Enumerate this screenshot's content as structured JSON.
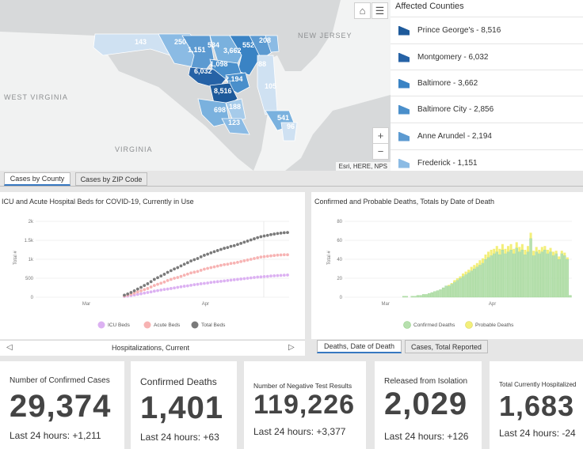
{
  "map": {
    "labels": {
      "nj": "NEW JERSEY",
      "wv": "WEST VIRGINIA",
      "va": "VIRGINIA"
    },
    "county_values": [
      "143",
      "250",
      "1,151",
      "534",
      "3,662",
      "552",
      "208",
      "1,098",
      "6,032",
      "2,194",
      "8,516",
      "698",
      "188",
      "123",
      "541",
      "96",
      "88",
      "105"
    ],
    "attribution": "Esri, HERE, NPS",
    "zoom_in": "+",
    "zoom_out": "−"
  },
  "legend": {
    "title": "Affected Counties",
    "items": [
      {
        "label": "Prince George's - 8,516",
        "color": "#1e5a9b"
      },
      {
        "label": "Montgomery - 6,032",
        "color": "#2662a6"
      },
      {
        "label": "Baltimore - 3,662",
        "color": "#3a83c4"
      },
      {
        "label": "Baltimore City - 2,856",
        "color": "#4a8fcb"
      },
      {
        "label": "Anne Arundel - 2,194",
        "color": "#5c9ad1"
      },
      {
        "label": "Frederick - 1,151",
        "color": "#8bbbe4"
      }
    ]
  },
  "map_tabs": {
    "county": "Cases by County",
    "zip": "Cases by ZIP Code"
  },
  "hosp_chart": {
    "title": "ICU and Acute Hospital Beds for COVID-19, Currently in Use",
    "footer": "Hospitalizations, Current",
    "prev": "◁",
    "next": "▷"
  },
  "deaths_chart": {
    "title": "Confirmed and Probable Deaths, Totals by Date of Death"
  },
  "deaths_tabs": {
    "date": "Deaths, Date of Death",
    "cases": "Cases, Total Reported"
  },
  "chart_data": [
    {
      "type": "scatter",
      "title": "ICU and Acute Hospital Beds for COVID-19, Currently in Use",
      "ylabel": "Total #",
      "yticks": [
        "0",
        "500",
        "1k",
        "1.5k",
        "2k"
      ],
      "ylim": [
        0,
        2000
      ],
      "xticks": [
        "Mar",
        "Apr"
      ],
      "legend": [
        "ICU Beds",
        "Acute Beds",
        "Total Beds"
      ],
      "colors": [
        "#dcb1f2",
        "#f7b3b3",
        "#7a7a7a"
      ],
      "series": [
        {
          "name": "ICU Beds",
          "values": [
            20,
            30,
            45,
            60,
            75,
            90,
            110,
            125,
            140,
            160,
            175,
            190,
            205,
            215,
            230,
            245,
            260,
            275,
            290,
            300,
            315,
            330,
            340,
            355,
            365,
            375,
            390,
            400,
            410,
            420,
            430,
            440,
            450,
            460,
            470,
            480,
            490,
            500,
            510,
            520,
            530,
            535,
            545,
            550,
            560,
            565,
            570,
            575,
            580,
            585
          ]
        },
        {
          "name": "Acute Beds",
          "values": [
            35,
            55,
            80,
            110,
            140,
            170,
            200,
            230,
            270,
            310,
            340,
            370,
            400,
            440,
            470,
            500,
            520,
            550,
            580,
            610,
            640,
            660,
            680,
            710,
            740,
            760,
            780,
            800,
            820,
            840,
            860,
            870,
            890,
            900,
            920,
            940,
            960,
            980,
            1000,
            1020,
            1040,
            1060,
            1070,
            1080,
            1090,
            1100,
            1110,
            1115,
            1120,
            1120
          ]
        },
        {
          "name": "Total Beds",
          "values": [
            55,
            85,
            125,
            170,
            215,
            260,
            310,
            355,
            410,
            470,
            515,
            560,
            605,
            655,
            700,
            745,
            780,
            825,
            870,
            910,
            955,
            990,
            1020,
            1065,
            1105,
            1135,
            1170,
            1200,
            1230,
            1260,
            1290,
            1310,
            1340,
            1360,
            1390,
            1420,
            1450,
            1480,
            1510,
            1540,
            1570,
            1595,
            1615,
            1630,
            1650,
            1665,
            1680,
            1690,
            1700,
            1705
          ]
        }
      ]
    },
    {
      "type": "bar",
      "title": "Confirmed and Probable Deaths, Totals by Date of Death",
      "ylabel": "Total #",
      "yticks": [
        "0",
        "20",
        "40",
        "60",
        "80"
      ],
      "ylim": [
        0,
        80
      ],
      "xticks": [
        "Mar",
        "Apr"
      ],
      "legend": [
        "Confirmed Deaths",
        "Probable Deaths"
      ],
      "colors": [
        "#b7e0ae",
        "#f3ef7a"
      ],
      "series": [
        {
          "name": "Confirmed Deaths",
          "values": [
            0,
            0,
            1,
            1,
            0,
            1,
            1,
            2,
            2,
            3,
            3,
            4,
            5,
            6,
            7,
            8,
            10,
            12,
            12,
            14,
            16,
            18,
            20,
            22,
            24,
            26,
            28,
            30,
            32,
            34,
            36,
            40,
            42,
            44,
            46,
            48,
            45,
            50,
            46,
            48,
            50,
            46,
            52,
            48,
            50,
            45,
            48,
            62,
            44,
            48,
            46,
            48,
            50,
            46,
            48,
            44,
            46,
            40,
            46,
            44,
            40,
            2
          ]
        },
        {
          "name": "Probable Deaths",
          "values": [
            0,
            0,
            0,
            0,
            0,
            0,
            0,
            0,
            0,
            0,
            0,
            0,
            0,
            0,
            0,
            0,
            0,
            0,
            1,
            1,
            2,
            2,
            2,
            3,
            3,
            3,
            4,
            4,
            4,
            5,
            5,
            5,
            6,
            6,
            5,
            6,
            6,
            6,
            5,
            6,
            6,
            5,
            6,
            5,
            6,
            5,
            6,
            6,
            5,
            5,
            4,
            5,
            4,
            4,
            4,
            4,
            3,
            3,
            3,
            3,
            2,
            0
          ]
        }
      ]
    }
  ],
  "stats": [
    {
      "label": "Number of Confirmed Cases",
      "value": "29,374",
      "last": "Last 24 hours: +1,211"
    },
    {
      "label": "Confirmed Deaths",
      "value": "1,401",
      "last": "Last 24 hours: +63"
    },
    {
      "label": "Number of Negative Test Results",
      "value": "119,226",
      "last": "Last 24 hours: +3,377"
    },
    {
      "label": "Released from Isolation",
      "value": "2,029",
      "last": "Last 24 hours: +126"
    },
    {
      "label": "Total Currently Hospitalized",
      "value": "1,683",
      "last": "Last 24 hours: -24"
    }
  ]
}
